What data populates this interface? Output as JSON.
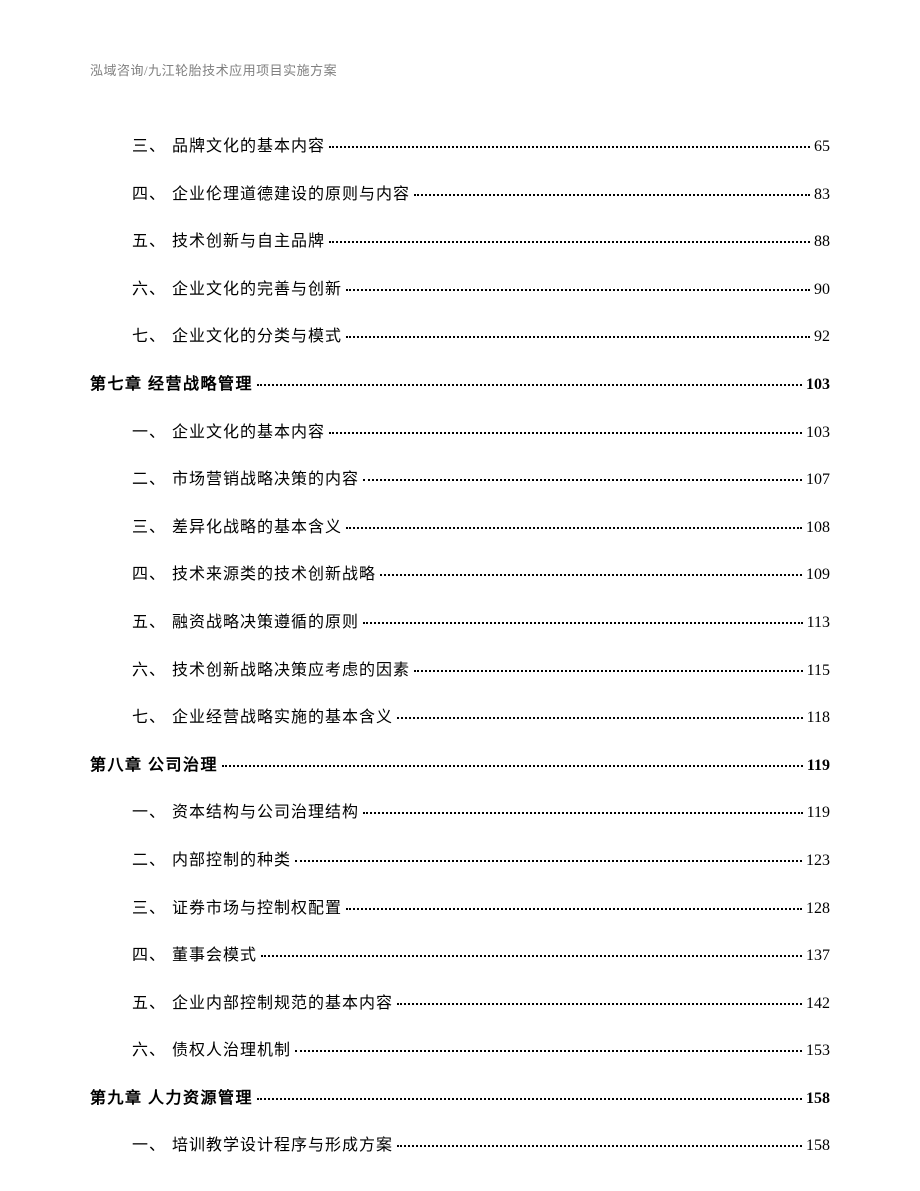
{
  "header": "泓域咨询/九江轮胎技术应用项目实施方案",
  "items": [
    {
      "type": "sub",
      "num": "三、",
      "text": "品牌文化的基本内容",
      "page": "65"
    },
    {
      "type": "sub",
      "num": "四、",
      "text": "企业伦理道德建设的原则与内容",
      "page": "83"
    },
    {
      "type": "sub",
      "num": "五、",
      "text": "技术创新与自主品牌",
      "page": "88"
    },
    {
      "type": "sub",
      "num": "六、",
      "text": "企业文化的完善与创新",
      "page": "90"
    },
    {
      "type": "sub",
      "num": "七、",
      "text": "企业文化的分类与模式",
      "page": "92"
    },
    {
      "type": "chapter",
      "text": "第七章 经营战略管理",
      "page": "103"
    },
    {
      "type": "sub",
      "num": "一、",
      "text": "企业文化的基本内容",
      "page": "103"
    },
    {
      "type": "sub",
      "num": "二、",
      "text": "市场营销战略决策的内容",
      "page": "107"
    },
    {
      "type": "sub",
      "num": "三、",
      "text": "差异化战略的基本含义",
      "page": "108"
    },
    {
      "type": "sub",
      "num": "四、",
      "text": "技术来源类的技术创新战略",
      "page": "109"
    },
    {
      "type": "sub",
      "num": "五、",
      "text": "融资战略决策遵循的原则",
      "page": "113"
    },
    {
      "type": "sub",
      "num": "六、",
      "text": "技术创新战略决策应考虑的因素",
      "page": "115"
    },
    {
      "type": "sub",
      "num": "七、",
      "text": "企业经营战略实施的基本含义",
      "page": "118"
    },
    {
      "type": "chapter",
      "text": "第八章 公司治理",
      "page": "119"
    },
    {
      "type": "sub",
      "num": "一、",
      "text": "资本结构与公司治理结构",
      "page": "119"
    },
    {
      "type": "sub",
      "num": "二、",
      "text": "内部控制的种类",
      "page": "123"
    },
    {
      "type": "sub",
      "num": "三、",
      "text": "证券市场与控制权配置",
      "page": "128"
    },
    {
      "type": "sub",
      "num": "四、",
      "text": "董事会模式",
      "page": "137"
    },
    {
      "type": "sub",
      "num": "五、",
      "text": "企业内部控制规范的基本内容",
      "page": "142"
    },
    {
      "type": "sub",
      "num": "六、",
      "text": "债权人治理机制",
      "page": "153"
    },
    {
      "type": "chapter",
      "text": "第九章 人力资源管理",
      "page": "158"
    },
    {
      "type": "sub",
      "num": "一、",
      "text": "培训教学设计程序与形成方案",
      "page": "158"
    }
  ]
}
